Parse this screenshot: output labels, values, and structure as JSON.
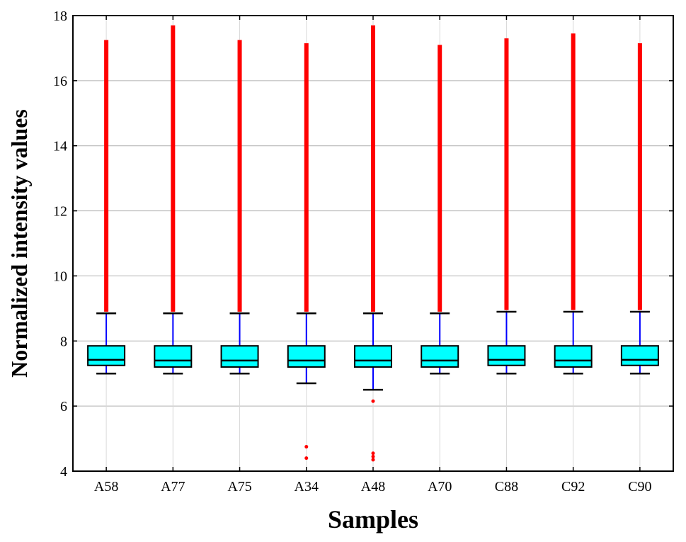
{
  "chart_data": {
    "type": "box",
    "title": "",
    "xlabel": "Samples",
    "ylabel": "Normalized intensity values",
    "ylim": [
      4,
      18
    ],
    "yticks": [
      4,
      6,
      8,
      10,
      12,
      14,
      16,
      18
    ],
    "grid": true,
    "colors": {
      "box_fill": "#00ffff",
      "box_edge": "#000000",
      "whisker": "#0000ff",
      "cap": "#000000",
      "median": "#000000",
      "outlier": "#ff0000",
      "grid": "#b0b0b0"
    },
    "categories": [
      "A58",
      "A77",
      "A75",
      "A34",
      "A48",
      "A70",
      "C88",
      "C92",
      "C90"
    ],
    "boxes": [
      {
        "q1": 7.25,
        "median": 7.42,
        "q3": 7.85,
        "whislo": 7.0,
        "whishi": 8.85,
        "outliers_high": [
          8.9,
          17.25
        ],
        "outliers_low": []
      },
      {
        "q1": 7.2,
        "median": 7.4,
        "q3": 7.85,
        "whislo": 7.0,
        "whishi": 8.85,
        "outliers_high": [
          8.9,
          17.7
        ],
        "outliers_low": []
      },
      {
        "q1": 7.2,
        "median": 7.4,
        "q3": 7.85,
        "whislo": 7.0,
        "whishi": 8.85,
        "outliers_high": [
          8.9,
          17.25
        ],
        "outliers_low": []
      },
      {
        "q1": 7.2,
        "median": 7.4,
        "q3": 7.85,
        "whislo": 6.7,
        "whishi": 8.85,
        "outliers_high": [
          8.9,
          17.15
        ],
        "outliers_low": [
          4.75,
          4.4
        ]
      },
      {
        "q1": 7.2,
        "median": 7.4,
        "q3": 7.85,
        "whislo": 6.5,
        "whishi": 8.85,
        "outliers_high": [
          8.9,
          17.7
        ],
        "outliers_low": [
          6.15,
          4.55,
          4.45,
          4.35
        ]
      },
      {
        "q1": 7.2,
        "median": 7.4,
        "q3": 7.85,
        "whislo": 7.0,
        "whishi": 8.85,
        "outliers_high": [
          8.9,
          17.1
        ],
        "outliers_low": []
      },
      {
        "q1": 7.25,
        "median": 7.42,
        "q3": 7.85,
        "whislo": 7.0,
        "whishi": 8.9,
        "outliers_high": [
          8.95,
          17.3
        ],
        "outliers_low": []
      },
      {
        "q1": 7.2,
        "median": 7.4,
        "q3": 7.85,
        "whislo": 7.0,
        "whishi": 8.9,
        "outliers_high": [
          8.95,
          17.45
        ],
        "outliers_low": []
      },
      {
        "q1": 7.25,
        "median": 7.42,
        "q3": 7.85,
        "whislo": 7.0,
        "whishi": 8.9,
        "outliers_high": [
          8.95,
          17.15
        ],
        "outliers_low": []
      }
    ]
  }
}
